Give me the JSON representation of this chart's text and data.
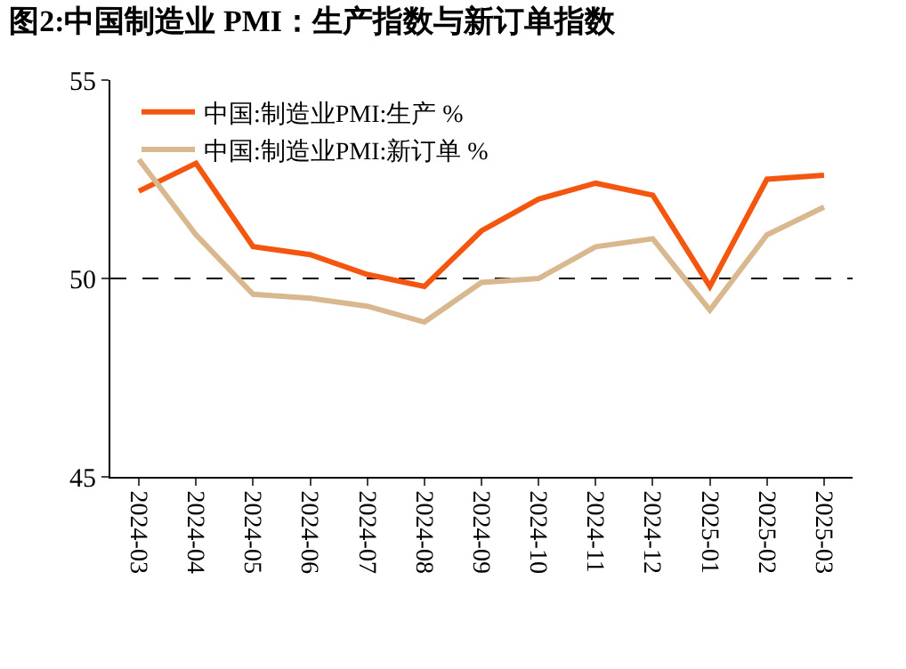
{
  "chart_data": {
    "type": "line",
    "title": "图2:中国制造业 PMI：生产指数与新订单指数",
    "categories": [
      "2024-03",
      "2024-04",
      "2024-05",
      "2024-06",
      "2024-07",
      "2024-08",
      "2024-09",
      "2024-10",
      "2024-11",
      "2024-12",
      "2025-01",
      "2025-02",
      "2025-03"
    ],
    "series": [
      {
        "name": "中国:制造业PMI:生产 %",
        "color": "#f4560f",
        "values": [
          52.2,
          52.9,
          50.8,
          50.6,
          50.1,
          49.8,
          51.2,
          52.0,
          52.4,
          52.1,
          49.8,
          52.5,
          52.6
        ]
      },
      {
        "name": "中国:制造业PMI:新订单 %",
        "color": "#d9b88f",
        "values": [
          53.0,
          51.1,
          49.6,
          49.5,
          49.3,
          48.9,
          49.9,
          50.0,
          50.8,
          51.0,
          49.2,
          51.1,
          51.8
        ]
      }
    ],
    "ylim": [
      45,
      55
    ],
    "yticks": [
      45,
      50,
      55
    ],
    "grid": "y",
    "legend": "top left",
    "marker": "none",
    "line_style": "solid"
  }
}
